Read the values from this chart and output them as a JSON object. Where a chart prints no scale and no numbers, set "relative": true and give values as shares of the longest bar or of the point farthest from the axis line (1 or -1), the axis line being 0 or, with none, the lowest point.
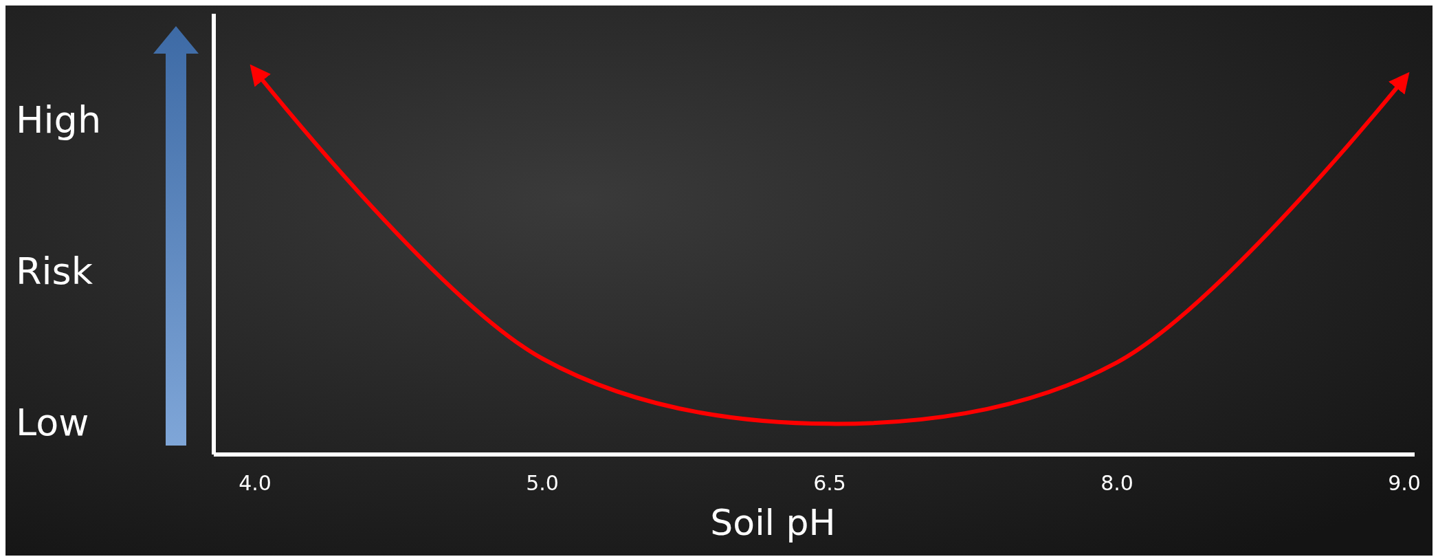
{
  "chart_data": {
    "type": "line",
    "categories": [
      "4.0",
      "5.0",
      "6.5",
      "8.0",
      "9.0"
    ],
    "relative": true,
    "xlabel": "Soil pH",
    "ylabel": "Risk",
    "annotations": [
      "High",
      "Low"
    ],
    "series": [
      {
        "color": "#ff0000",
        "values": [
          1,
          0.25,
          0.08,
          0.24,
          0.98
        ]
      }
    ]
  }
}
